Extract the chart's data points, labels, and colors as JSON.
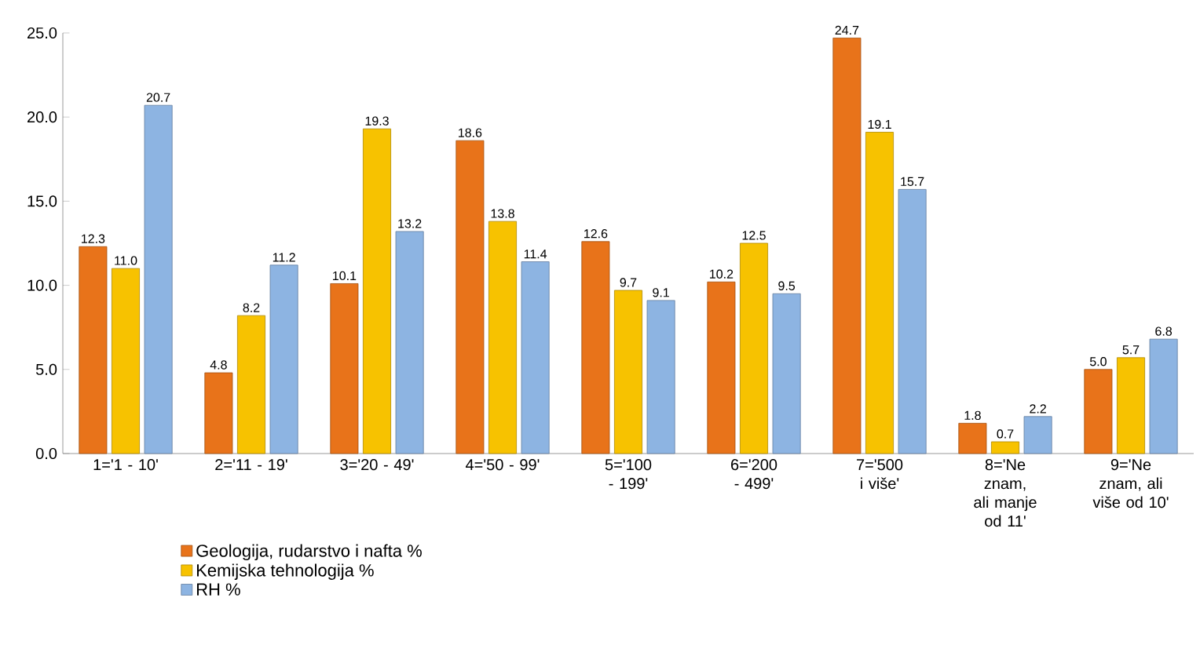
{
  "chart_data": {
    "type": "bar",
    "categories": [
      "1='1 - 10'",
      "2='11 - 19'",
      "3='20 - 49'",
      "4='50 - 99'",
      "5='100 - 199'",
      "6='200 - 499'",
      "7='500 i više'",
      "8='Ne znam, ali manje od 11'",
      "9='Ne znam, ali više od 10'"
    ],
    "series": [
      {
        "name": "Geologija, rudarstvo i nafta %",
        "color": "#e8731a",
        "values": [
          12.3,
          4.8,
          10.1,
          18.6,
          12.6,
          10.2,
          24.7,
          1.8,
          5.0
        ],
        "value_labels": [
          "12.3",
          "4.8",
          "10.1",
          "18.6",
          "12.6",
          "10.2",
          "24.7",
          "1.8",
          "5.0"
        ]
      },
      {
        "name": "Kemijska tehnologija %",
        "color": "#f7c200",
        "values": [
          11.0,
          8.2,
          19.3,
          13.8,
          9.7,
          12.5,
          19.1,
          0.7,
          5.7
        ],
        "value_labels": [
          "11.0",
          "8.2",
          "19.3",
          "13.8",
          "9.7",
          "12.5",
          "19.1",
          "0.7",
          "5.7"
        ]
      },
      {
        "name": "RH %",
        "color": "#8db4e2",
        "values": [
          20.7,
          11.2,
          13.2,
          11.4,
          9.1,
          9.5,
          15.7,
          2.2,
          6.8
        ],
        "value_labels": [
          "20.7",
          "11.2",
          "13.2",
          "11.4",
          "9.1",
          "9.5",
          "15.7",
          "2.2",
          "6.8"
        ]
      }
    ],
    "ylim": [
      0,
      25
    ],
    "yticks": [
      {
        "value": 0,
        "label": "0.0"
      },
      {
        "value": 5,
        "label": "5.0"
      },
      {
        "value": 10,
        "label": "10.0"
      },
      {
        "value": 15,
        "label": "15.0"
      },
      {
        "value": 20,
        "label": "20.0"
      },
      {
        "value": 25,
        "label": "25.0"
      }
    ],
    "legend": "bottom"
  }
}
